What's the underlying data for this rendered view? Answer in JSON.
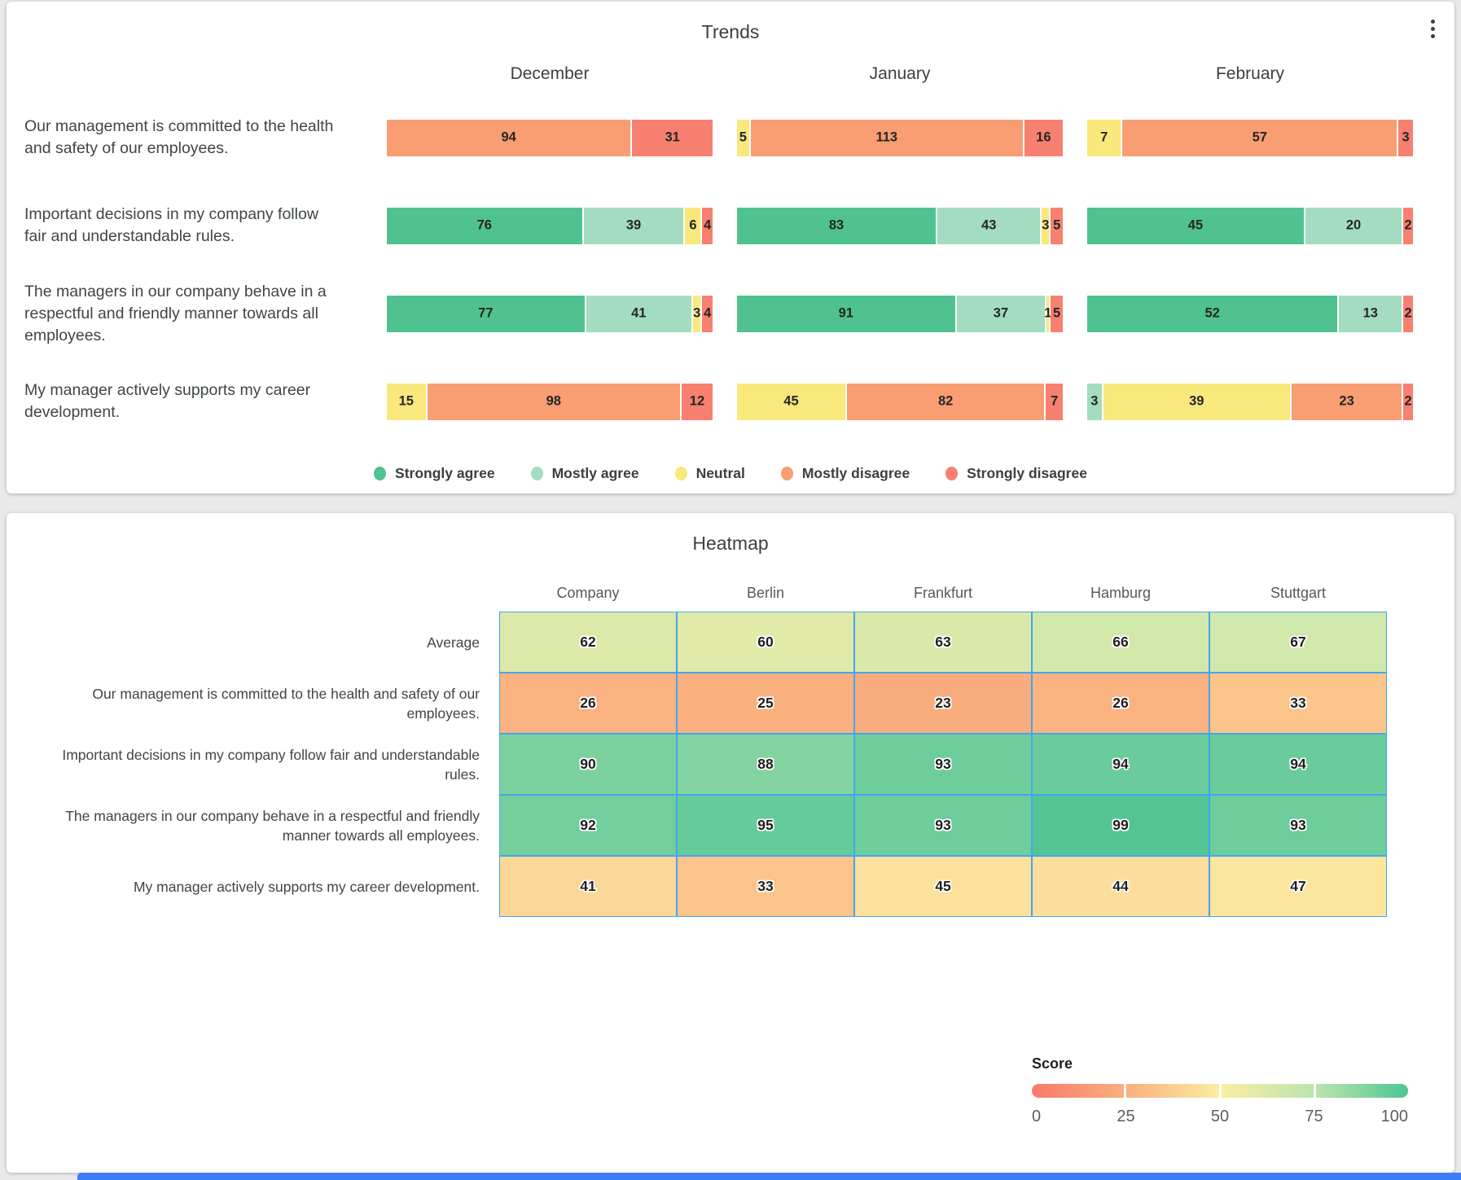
{
  "page": {
    "background": "#e9e9e9",
    "bottom_strip_color": "#3e7cf6"
  },
  "icons": {
    "card_menu": "kebab-vertical"
  },
  "chart_data": [
    {
      "type": "bar",
      "orientation": "horizontal",
      "stacked": true,
      "title": "Trends",
      "groups": [
        "December",
        "January",
        "February"
      ],
      "categories": [
        "Our management is committed to the health and safety of our employees.",
        "Important decisions in my company follow fair and understandable rules.",
        "The managers in our company behave in a respectful and friendly manner towards all employees.",
        "My manager actively supports my career development."
      ],
      "series": [
        {
          "name": "Strongly agree",
          "color": "#50c290",
          "values_by_month": {
            "December": [
              0,
              76,
              77,
              0
            ],
            "January": [
              0,
              83,
              91,
              0
            ],
            "February": [
              0,
              45,
              52,
              0
            ]
          }
        },
        {
          "name": "Mostly agree",
          "color": "#a3dcc0",
          "values_by_month": {
            "December": [
              0,
              39,
              41,
              0
            ],
            "January": [
              0,
              43,
              37,
              0
            ],
            "February": [
              0,
              20,
              13,
              3
            ]
          }
        },
        {
          "name": "Neutral",
          "color": "#f9e87c",
          "values_by_month": {
            "December": [
              0,
              6,
              3,
              15
            ],
            "January": [
              5,
              3,
              1,
              45
            ],
            "February": [
              7,
              0,
              0,
              39
            ]
          }
        },
        {
          "name": "Mostly disagree",
          "color": "#f99d72",
          "values_by_month": {
            "December": [
              94,
              0,
              0,
              98
            ],
            "January": [
              113,
              0,
              0,
              82
            ],
            "February": [
              57,
              0,
              0,
              23
            ]
          }
        },
        {
          "name": "Strongly disagree",
          "color": "#f88070",
          "values_by_month": {
            "December": [
              31,
              4,
              4,
              12
            ],
            "January": [
              16,
              5,
              5,
              7
            ],
            "February": [
              3,
              2,
              2,
              2
            ]
          }
        }
      ],
      "legend_position": "bottom"
    },
    {
      "type": "heatmap",
      "title": "Heatmap",
      "x": [
        "Company",
        "Berlin",
        "Frankfurt",
        "Hamburg",
        "Stuttgart"
      ],
      "y": [
        "Average",
        "Our management is committed to the health and safety of our employees.",
        "Important decisions in my company follow fair and understandable rules.",
        "The managers in our company behave in a respectful and friendly manner towards all employees.",
        "My manager actively supports my career development."
      ],
      "values": [
        [
          62,
          60,
          63,
          66,
          67
        ],
        [
          26,
          25,
          23,
          26,
          33
        ],
        [
          90,
          88,
          93,
          94,
          94
        ],
        [
          92,
          95,
          93,
          99,
          93
        ],
        [
          41,
          33,
          45,
          44,
          47
        ]
      ],
      "grid_color": "#42a5f5",
      "colorbar": {
        "label": "Score",
        "range": [
          0,
          100
        ],
        "ticks": [
          "0",
          "25",
          "50",
          "75",
          "100"
        ],
        "stops": [
          "#f8796c",
          "#f9b07e",
          "#fbeda4",
          "#bbe5ae",
          "#4fc494"
        ]
      }
    }
  ]
}
